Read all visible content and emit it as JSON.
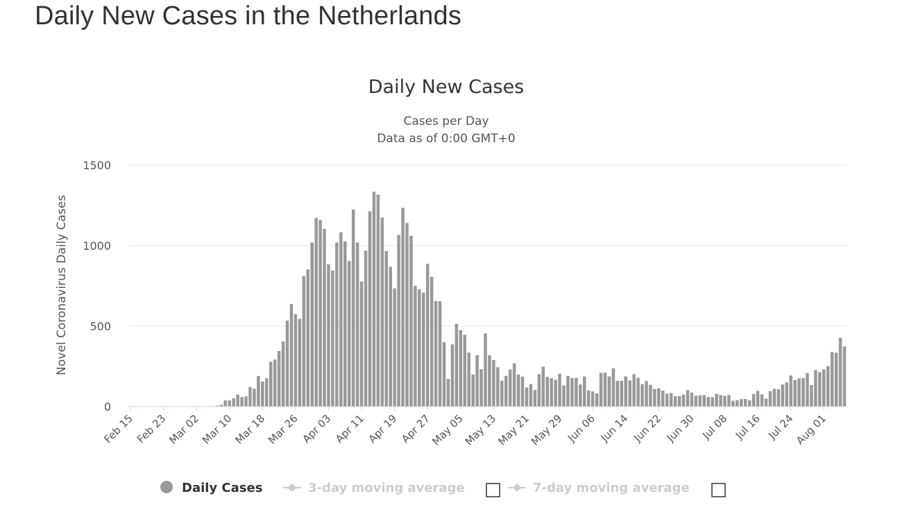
{
  "page": {
    "title": "Daily New Cases in the Netherlands"
  },
  "chart_data": {
    "type": "bar",
    "title": "Daily New Cases",
    "subtitle_lines": [
      "Cases per Day",
      "Data as of 0:00 GMT+0"
    ],
    "ylabel": "Novel Coronavirus Daily Cases",
    "xlabel": "",
    "ylim": [
      0,
      1500
    ],
    "yticks": [
      0,
      500,
      1000,
      1500
    ],
    "grid": true,
    "start_date": "Feb 15",
    "x_tick_labels": [
      "Feb 15",
      "Feb 23",
      "Mar 02",
      "Mar 10",
      "Mar 18",
      "Mar 26",
      "Apr 03",
      "Apr 11",
      "Apr 19",
      "Apr 27",
      "May 05",
      "May 13",
      "May 21",
      "May 29",
      "Jun 06",
      "Jun 14",
      "Jun 22",
      "Jun 30",
      "Jul 08",
      "Jul 16",
      "Jul 24",
      "Aug 01"
    ],
    "bar_color": "#999999",
    "series": [
      {
        "name": "Daily Cases",
        "values": [
          0,
          0,
          0,
          0,
          0,
          0,
          0,
          0,
          0,
          0,
          0,
          0,
          0,
          0,
          0,
          0,
          1,
          1,
          0,
          0,
          0,
          6,
          11,
          38,
          38,
          51,
          74,
          59,
          63,
          121,
          111,
          190,
          155,
          176,
          278,
          292,
          345,
          404,
          534,
          637,
          573,
          545,
          811,
          852,
          1019,
          1172,
          1159,
          1104,
          884,
          845,
          1019,
          1083,
          1026,
          904,
          1224,
          1019,
          777,
          969,
          1213,
          1335,
          1316,
          1174,
          966,
          868,
          734,
          1066,
          1235,
          1140,
          1061,
          750,
          729,
          708,
          887,
          806,
          655,
          655,
          400,
          171,
          386,
          514,
          475,
          445,
          335,
          199,
          319,
          232,
          455,
          318,
          289,
          244,
          161,
          191,
          230,
          268,
          199,
          186,
          118,
          140,
          103,
          201,
          248,
          184,
          176,
          166,
          204,
          131,
          190,
          177,
          178,
          137,
          187,
          100,
          94,
          82,
          209,
          210,
          187,
          237,
          160,
          160,
          188,
          162,
          201,
          178,
          139,
          158,
          135,
          109,
          113,
          99,
          80,
          84,
          65,
          65,
          74,
          101,
          87,
          67,
          69,
          71,
          59,
          58,
          78,
          71,
          66,
          72,
          36,
          39,
          46,
          47,
          38,
          78,
          97,
          76,
          49,
          95,
          110,
          107,
          137,
          150,
          193,
          164,
          175,
          177,
          208,
          134,
          227,
          214,
          231,
          251,
          338,
          334,
          427,
          373
        ]
      }
    ],
    "legend_position": "bottom-center",
    "legend": [
      {
        "label": "Daily Cases",
        "active": true
      },
      {
        "label": "3-day moving average",
        "active": false
      },
      {
        "label": "7-day moving average",
        "active": false
      }
    ]
  },
  "colors": {
    "bar": "#999999",
    "grid": "#e6e6e6",
    "text": "#333333",
    "muted": "#cccccc"
  }
}
